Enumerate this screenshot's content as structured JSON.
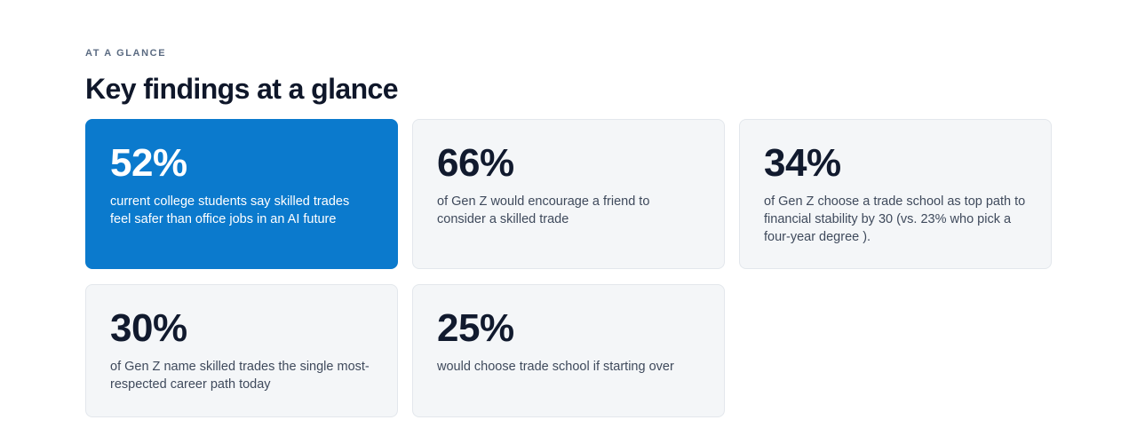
{
  "eyebrow": "AT A GLANCE",
  "title": "Key findings at a glance",
  "accent_color": "#0b7acd",
  "findings": [
    {
      "stat": "52%",
      "description": "current college students say skilled trades feel safer than office jobs in an AI future",
      "highlighted": true
    },
    {
      "stat": "66%",
      "description": "of Gen Z would encourage a friend to consider a skilled trade",
      "highlighted": false
    },
    {
      "stat": "34%",
      "description": "of Gen Z choose a trade school as top path to financial stability by 30 (vs. 23% who pick a four-year degree ).",
      "highlighted": false
    },
    {
      "stat": "30%",
      "description": "of Gen Z name skilled trades the single most-respected career path today",
      "highlighted": false
    },
    {
      "stat": "25%",
      "description": "would choose trade school if starting over",
      "highlighted": false
    }
  ]
}
